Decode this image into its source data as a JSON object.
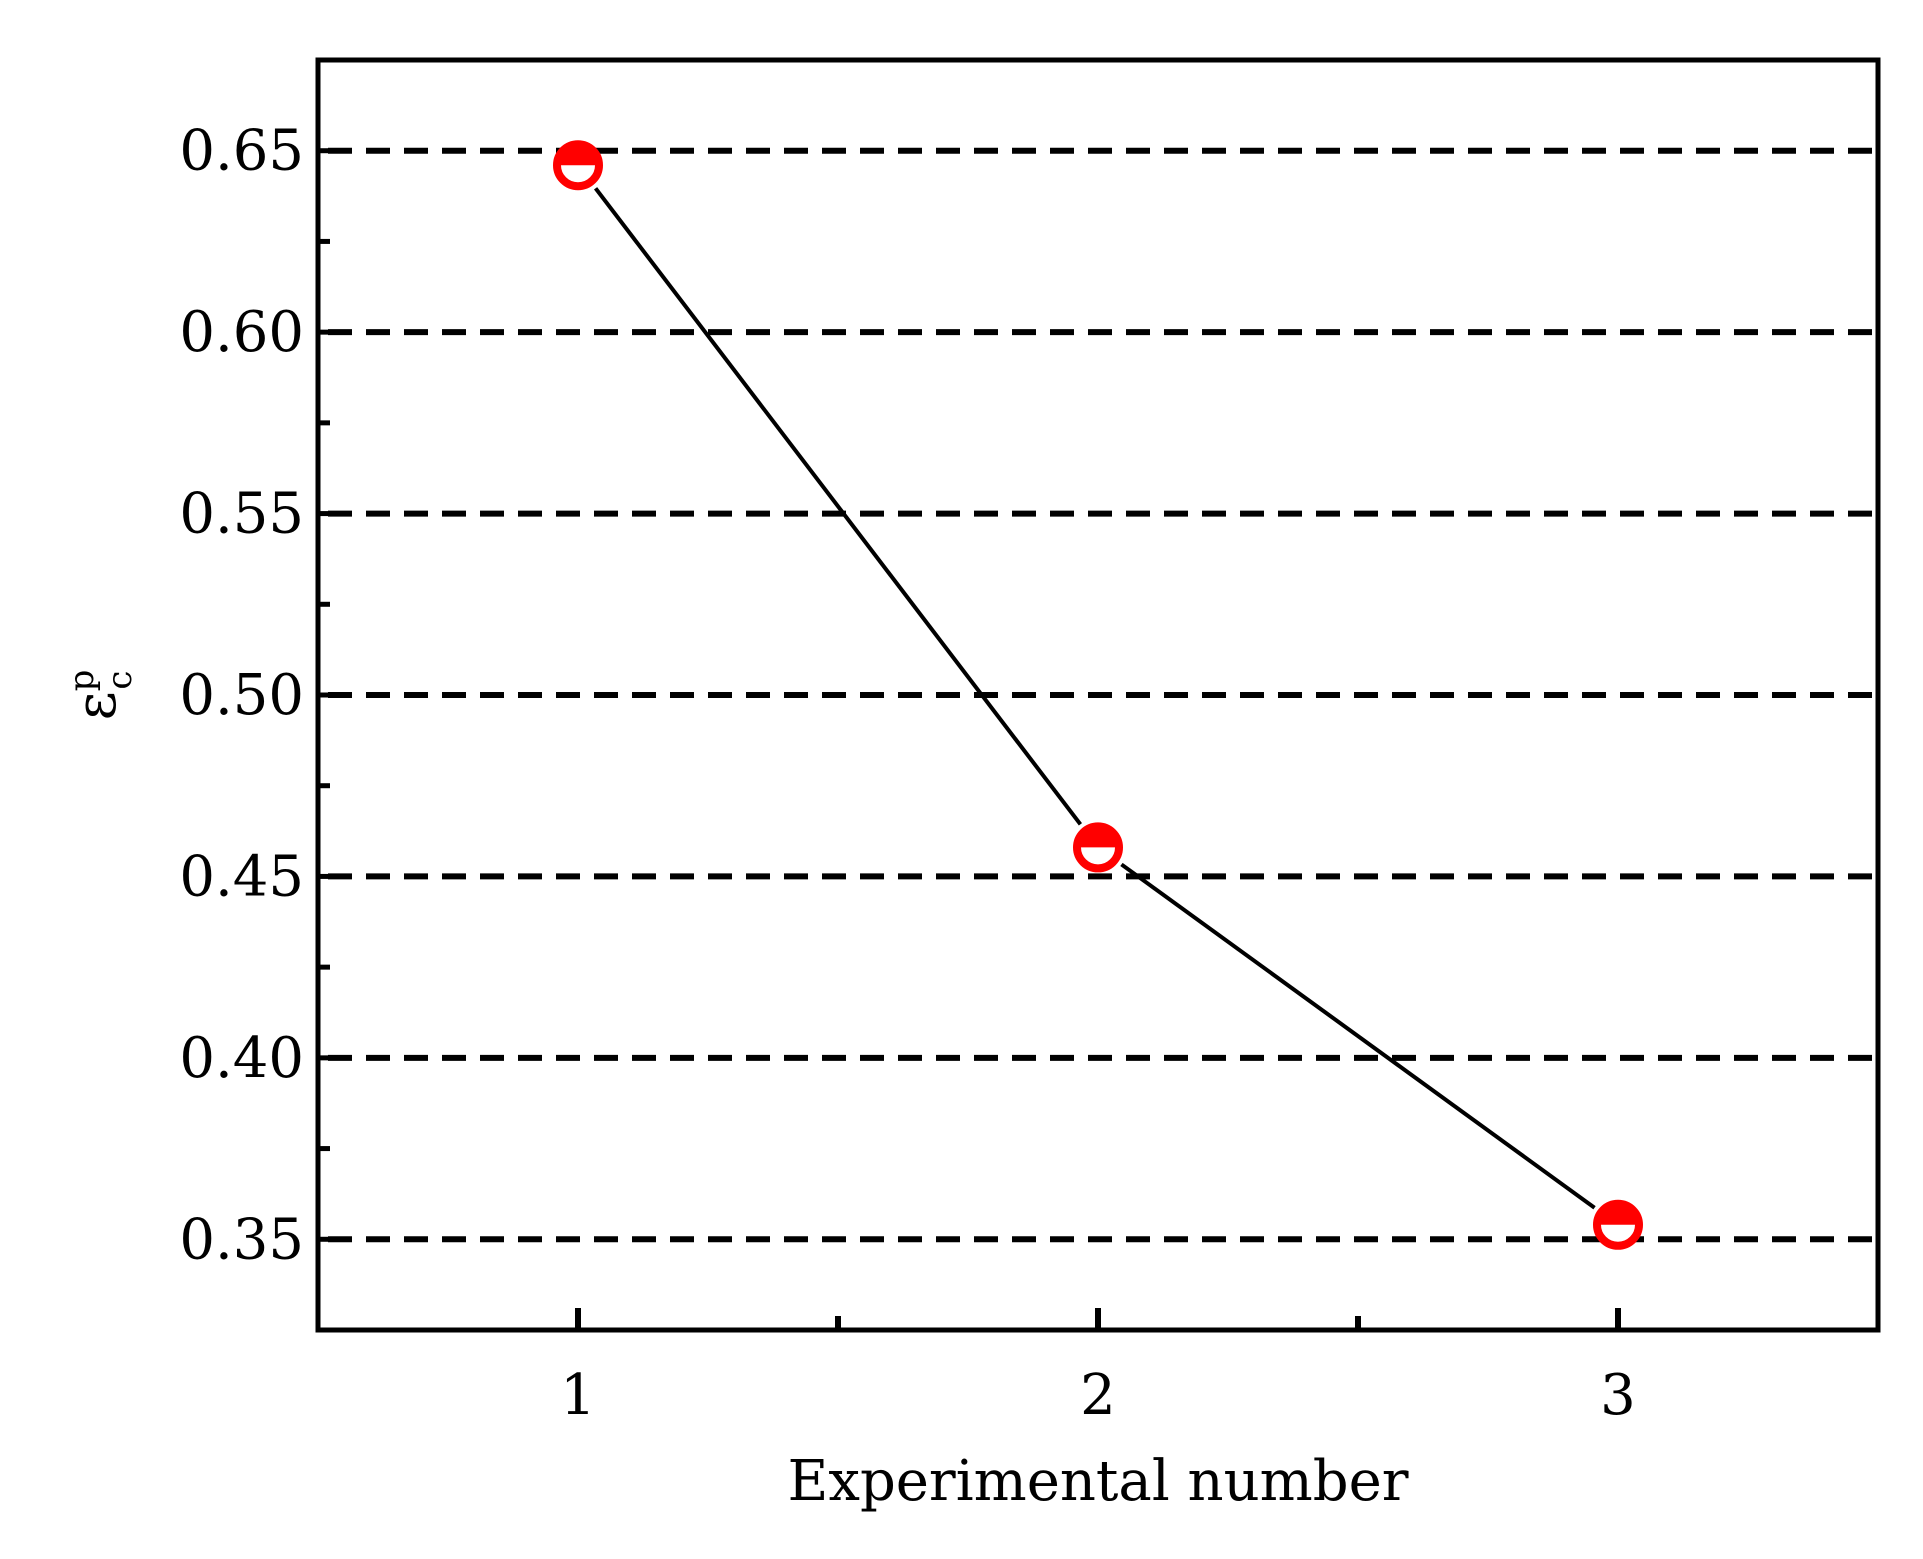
{
  "chart_data": {
    "type": "line",
    "x": [
      1,
      2,
      3
    ],
    "series": [
      {
        "values": [
          0.646,
          0.458,
          0.354
        ]
      }
    ],
    "x_ticks": [
      "1",
      "2",
      "3"
    ],
    "y_ticks": [
      "0.35",
      "0.40",
      "0.45",
      "0.50",
      "0.55",
      "0.60",
      "0.65"
    ],
    "xlabel": "Experimental number",
    "ylabel": {
      "base": "ε",
      "sup": "p",
      "sub": "c"
    },
    "xlim": [
      0.5,
      3.5
    ],
    "ylim": [
      0.325,
      0.675
    ],
    "grid": {
      "y": true,
      "x": false,
      "style": "dashed"
    },
    "marker": "half-filled circle",
    "colors": {
      "marker": "#ff0000",
      "line": "#000000",
      "grid": "#000000"
    }
  }
}
